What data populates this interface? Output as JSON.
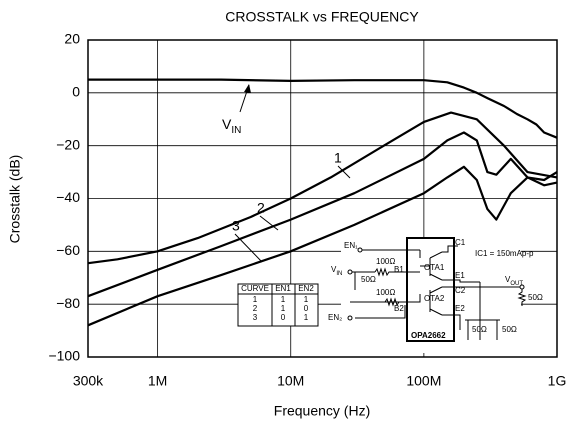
{
  "chart_data": {
    "type": "line",
    "title": "CROSSTALK vs FREQUENCY",
    "x_label": "Frequency (Hz)",
    "y_label": "Crosstalk (dB)",
    "xscale": "log",
    "xlim": [
      300000,
      1000000000
    ],
    "xticks": [
      {
        "value": 300000,
        "label": "300k"
      },
      {
        "value": 1000000,
        "label": "1M"
      },
      {
        "value": 10000000,
        "label": "10M"
      },
      {
        "value": 100000000,
        "label": "100M"
      },
      {
        "value": 1000000000,
        "label": "1G"
      }
    ],
    "ylim": [
      -100,
      20
    ],
    "yticks": [
      20,
      0,
      {
        "value": -20,
        "label": "−20"
      },
      {
        "value": -40,
        "label": "−40"
      },
      {
        "value": -60,
        "label": "−60"
      },
      {
        "value": -80,
        "label": "−80"
      },
      {
        "value": -100,
        "label": "−100"
      }
    ],
    "grid": true,
    "series": [
      {
        "color": "#000000",
        "x": [
          300000,
          1000000,
          3000000,
          10000000,
          30000000,
          100000000,
          150000000,
          200000000,
          250000000,
          300000000,
          400000000,
          500000000,
          600000000,
          700000000,
          800000000,
          1000000000
        ],
        "values": [
          5,
          5,
          5,
          4.5,
          4.8,
          4.8,
          4,
          2,
          0,
          -2,
          -5,
          -8,
          -10,
          -12,
          -15,
          -17
        ]
      },
      {
        "name": "1",
        "color": "#000000",
        "x": [
          300000,
          500000,
          1000000,
          2000000,
          5000000,
          10000000,
          20000000,
          50000000,
          100000000,
          160000000,
          250000000,
          400000000,
          600000000,
          1000000000
        ],
        "values": [
          -64.5,
          -63,
          -60,
          -55,
          -47,
          -40,
          -32,
          -20,
          -11,
          -7.5,
          -10,
          -20,
          -30,
          -32
        ]
      },
      {
        "name": "2",
        "color": "#000000",
        "x": [
          300000,
          1000000,
          3000000,
          10000000,
          30000000,
          100000000,
          150000000,
          200000000,
          250000000,
          300000000,
          350000000,
          450000000,
          600000000,
          800000000,
          1000000000
        ],
        "values": [
          -77,
          -67,
          -58,
          -48,
          -38,
          -25,
          -18,
          -15,
          -18,
          -30,
          -31,
          -25,
          -32,
          -35,
          -34
        ]
      },
      {
        "name": "3",
        "color": "#000000",
        "x": [
          300000,
          1000000,
          3000000,
          10000000,
          30000000,
          100000000,
          150000000,
          200000000,
          250000000,
          300000000,
          350000000,
          450000000,
          600000000,
          800000000,
          1000000000
        ],
        "values": [
          -88,
          -77,
          -69,
          -60,
          -50,
          -38,
          -32,
          -28,
          -33,
          -44,
          -48,
          -38,
          -32,
          -33,
          -30
        ]
      }
    ],
    "vin_label": {
      "text": "V",
      "sub": "IN"
    },
    "table": {
      "header": [
        "CURVE",
        "EN1",
        "EN2"
      ],
      "rows": [
        [
          "1",
          "1",
          "1"
        ],
        [
          "2",
          "1",
          "0"
        ],
        [
          "3",
          "0",
          "1"
        ]
      ]
    },
    "schematic": {
      "en1": "EN₁",
      "vin": "V",
      "vin_sub": "IN",
      "r100a": "100Ω",
      "r50a": "50Ω",
      "b1": "B1",
      "ota1": "OTA1",
      "c1": "C1",
      "ic": "IC1 = 150mAp-p",
      "e1": "E1",
      "vout": "V",
      "vout_sub": "OUT",
      "r50out": "50Ω",
      "c2": "C2",
      "ota2": "OTA2",
      "e2": "E2",
      "en2": "EN₂",
      "r100b": "100Ω",
      "b2": "B2",
      "part": "OPA2662",
      "r50b": "50Ω",
      "r50c": "50Ω"
    }
  }
}
